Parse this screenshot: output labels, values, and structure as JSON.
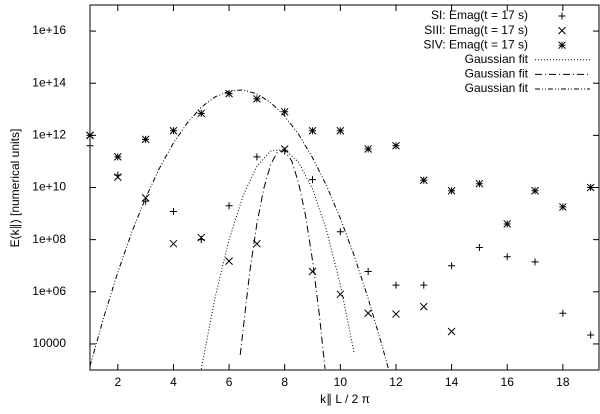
{
  "chart_data": {
    "type": "scatter",
    "x_label": "k∥ L / 2 π",
    "y_label": "E(k∥) [numerical units]",
    "xlim": [
      1,
      19.3
    ],
    "ylim": [
      1000,
      1e+17
    ],
    "log_y": true,
    "grid": false,
    "legend": "top-right",
    "xticks": [
      2,
      4,
      6,
      8,
      10,
      12,
      14,
      16,
      18
    ],
    "yticks": [
      10000,
      {
        "value": 1000000.0,
        "label": "1e+06"
      },
      {
        "value": 100000000.0,
        "label": "1e+08"
      },
      {
        "value": 10000000000.0,
        "label": "1e+10"
      },
      {
        "value": 1000000000000.0,
        "label": "1e+12"
      },
      {
        "value": 100000000000000.0,
        "label": "1e+14"
      },
      {
        "value": 1e+16,
        "label": "1e+16"
      }
    ],
    "series": [
      {
        "name": "SI: Emag(t = 17 s)",
        "color": "#000000",
        "marker": "plus",
        "x": [
          1,
          2,
          3,
          4,
          5,
          6,
          7,
          8,
          9,
          10,
          11,
          12,
          13,
          14,
          15,
          16,
          17,
          18,
          19
        ],
        "values": [
          400000000000.0,
          30000000000.0,
          3000000000.0,
          1200000000.0,
          100000000.0,
          2000000000.0,
          150000000000.0,
          250000000000.0,
          20000000000.0,
          200000000.0,
          6000000.0,
          1800000.0,
          1800000.0,
          10000000.0,
          50000000.0,
          22000000.0,
          14000000.0,
          150000.0,
          22000.0
        ]
      },
      {
        "name": "SIII: Emag(t = 17 s)",
        "color": "#000000",
        "marker": "cross",
        "x": [
          1,
          2,
          3,
          4,
          5,
          6,
          7,
          8,
          9,
          10,
          11,
          12,
          13,
          14
        ],
        "values": [
          1000000000000.0,
          25000000000.0,
          4000000000.0,
          70000000.0,
          120000000.0,
          15000000.0,
          70000000.0,
          300000000000.0,
          6000000.0,
          800000.0,
          150000.0,
          140000.0,
          270000.0,
          30000.0
        ]
      },
      {
        "name": "SIV: Emag(t = 17 s)",
        "color": "#000000",
        "marker": "star",
        "x": [
          1,
          2,
          3,
          4,
          5,
          6,
          7,
          8,
          9,
          10,
          11,
          12,
          13,
          14,
          15,
          16,
          17,
          18,
          19
        ],
        "values": [
          1000000000000.0,
          150000000000.0,
          700000000000.0,
          1500000000000.0,
          7000000000000.0,
          40000000000000.0,
          25000000000000.0,
          8000000000000.0,
          1500000000000.0,
          1500000000000.0,
          300000000000.0,
          400000000000.0,
          19000000000.0,
          7500000000.0,
          14000000000.0,
          400000000.0,
          7500000000.0,
          1800000000.0,
          10000000000.0
        ]
      },
      {
        "name": "Gaussian fit",
        "color": "#000000",
        "dash": "dotted",
        "x": [
          5,
          5.5,
          6,
          6.5,
          7,
          7.5,
          8,
          8.5,
          9,
          9.5,
          10,
          10.5
        ],
        "values": [
          1100.0,
          620000.0,
          100000000.0,
          4700000000.0,
          65000000000.0,
          250000000000.0,
          290000000000.0,
          93000000000.0,
          8800000000.0,
          240000000.0,
          1900000.0,
          4300.0
        ]
      },
      {
        "name": "Gaussian fit",
        "color": "#000000",
        "dash": "dash-dot",
        "x": [
          6.4,
          6.75,
          7,
          7.25,
          7.5,
          7.75,
          8,
          8.25,
          8.5,
          8.75,
          9,
          9.25,
          9.45
        ],
        "values": [
          3800.0,
          6600000.0,
          410000000.0,
          9400000000.0,
          78000000000.0,
          240000000000.0,
          260000000000.0,
          105000000000.0,
          15000000000.0,
          830000000.0,
          16000000.0,
          120000.0,
          1100.0
        ]
      },
      {
        "name": "Gaussian fit",
        "color": "#000000",
        "dash": "dash-dot-dot",
        "x": [
          1,
          1.5,
          2,
          2.5,
          3,
          3.5,
          4,
          4.5,
          5,
          5.5,
          6,
          6.5,
          7,
          7.5,
          8,
          8.5,
          9,
          9.5,
          10,
          10.5,
          11,
          11.5,
          11.75
        ],
        "values": [
          1400.0,
          110000.0,
          5600000.0,
          190000000.0,
          4000000000.0,
          56000000000.0,
          510000000000.0,
          3000000000000.0,
          12000000000000.0,
          30000000000000.0,
          50000000000000.0,
          55000000000000.0,
          39000000000000.0,
          18000000000000.0,
          5500000000000.0,
          1100000000000.0,
          140000000000.0,
          12000000000.0,
          660000000.0,
          24000000.0,
          560000.0,
          8700.0,
          910.0
        ]
      }
    ]
  }
}
